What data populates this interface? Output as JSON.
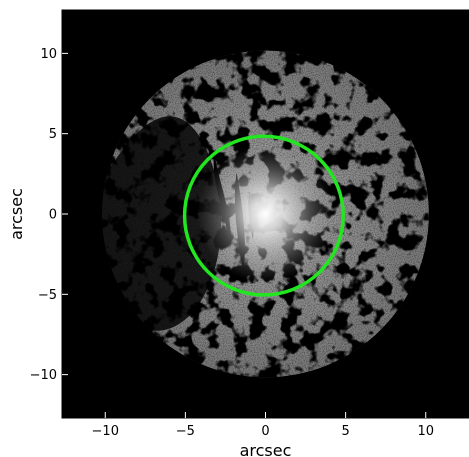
{
  "chart_data": {
    "type": "image",
    "xlabel": "arcsec",
    "ylabel": "arcsec",
    "xlim": [
      -12.7,
      12.7
    ],
    "ylim": [
      -12.7,
      12.7
    ],
    "xticks": [
      {
        "value": -10,
        "label": "−10"
      },
      {
        "value": -5,
        "label": "−5"
      },
      {
        "value": 0,
        "label": "0"
      },
      {
        "value": 5,
        "label": "5"
      },
      {
        "value": 10,
        "label": "10"
      }
    ],
    "yticks": [
      {
        "value": 10,
        "label": "10"
      },
      {
        "value": 5,
        "label": "5"
      },
      {
        "value": 0,
        "label": "0"
      },
      {
        "value": -5,
        "label": "−5"
      },
      {
        "value": -10,
        "label": "−10"
      }
    ],
    "field_of_view": {
      "center": [
        0,
        0
      ],
      "radius": 10.2
    },
    "aperture": {
      "center": [
        -0.1,
        -0.1
      ],
      "radius": 4.95,
      "color": "#22e61f"
    },
    "colors": {
      "background": "#000000",
      "image_gray": "#8a8a8a",
      "core": "#ffffff"
    }
  }
}
